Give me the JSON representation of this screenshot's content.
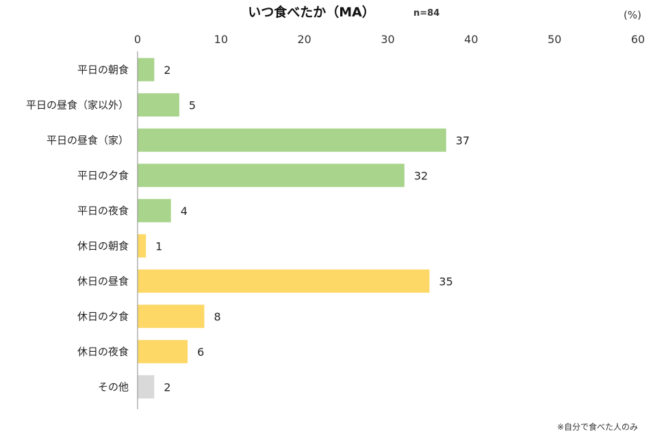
{
  "chart_data": {
    "type": "bar",
    "orientation": "horizontal",
    "title": "いつ食べたか（MA）",
    "n_label": "n=84",
    "unit_label": "(%)",
    "xlim": [
      0,
      60
    ],
    "ticks": [
      0,
      10,
      20,
      30,
      40,
      50,
      60
    ],
    "grid": false,
    "categories": [
      "平日の朝食",
      "平日の昼食（家以外）",
      "平日の昼食（家）",
      "平日の夕食",
      "平日の夜食",
      "休日の朝食",
      "休日の昼食",
      "休日の夕食",
      "休日の夜食",
      "その他"
    ],
    "values": [
      2,
      5,
      37,
      32,
      4,
      1,
      35,
      8,
      6,
      2
    ],
    "groups": [
      "平日",
      "平日",
      "平日",
      "平日",
      "平日",
      "休日",
      "休日",
      "休日",
      "休日",
      "その他"
    ],
    "colors": {
      "平日": "#a8d48c",
      "休日": "#fdd866",
      "その他": "#d9d9d9"
    },
    "footnote": "※自分で食べた人のみ"
  }
}
